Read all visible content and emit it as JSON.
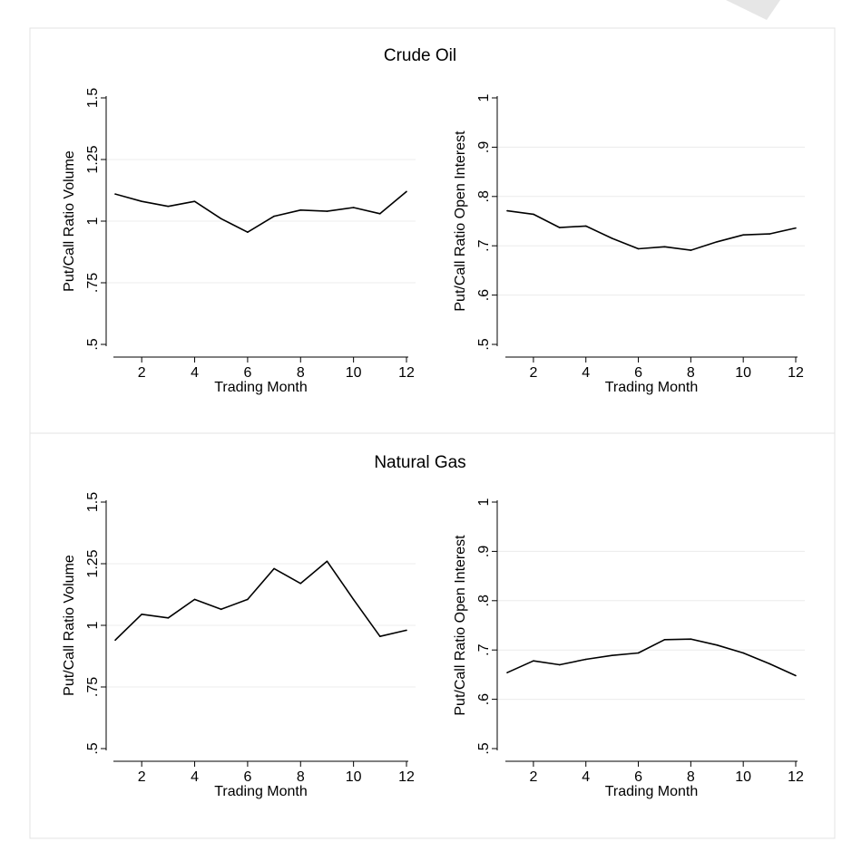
{
  "page": {
    "background": "#ffffff",
    "panel_border_color": "#e3e3e3",
    "grid_color": "#ececec",
    "line_color": "#000000"
  },
  "chart_data": [
    {
      "id": "crude-volume",
      "group_title": "Crude Oil",
      "type": "line",
      "xlabel": "Trading Month",
      "ylabel": "Put/Call Ratio Volume",
      "xlim": [
        1,
        12
      ],
      "ylim": [
        0.5,
        1.5
      ],
      "xticks": [
        2,
        4,
        6,
        8,
        10,
        12
      ],
      "xtick_labels": [
        "2",
        "4",
        "6",
        "8",
        "10",
        "12"
      ],
      "yticks": [
        0.5,
        0.75,
        1,
        1.25,
        1.5
      ],
      "ytick_labels": [
        ".5",
        ".75",
        "1",
        "1.25",
        "1.5"
      ],
      "grid": true,
      "x": [
        1,
        2,
        3,
        4,
        5,
        6,
        7,
        8,
        9,
        10,
        11,
        12
      ],
      "y": [
        1.11,
        1.08,
        1.06,
        1.08,
        1.01,
        0.955,
        1.02,
        1.045,
        1.04,
        1.055,
        1.03,
        1.12
      ]
    },
    {
      "id": "crude-oi",
      "group_title": "Crude Oil",
      "type": "line",
      "xlabel": "Trading Month",
      "ylabel": "Put/Call Ratio Open Interest",
      "xlim": [
        1,
        12
      ],
      "ylim": [
        0.5,
        1.0
      ],
      "xticks": [
        2,
        4,
        6,
        8,
        10,
        12
      ],
      "xtick_labels": [
        "2",
        "4",
        "6",
        "8",
        "10",
        "12"
      ],
      "yticks": [
        0.5,
        0.6,
        0.7,
        0.8,
        0.9,
        1.0
      ],
      "ytick_labels": [
        ".5",
        ".6",
        ".7",
        ".8",
        ".9",
        "1"
      ],
      "grid": true,
      "x": [
        1,
        2,
        3,
        4,
        5,
        6,
        7,
        8,
        9,
        10,
        11,
        12
      ],
      "y": [
        0.771,
        0.764,
        0.737,
        0.74,
        0.715,
        0.694,
        0.698,
        0.691,
        0.708,
        0.722,
        0.724,
        0.736
      ]
    },
    {
      "id": "gas-volume",
      "group_title": "Natural Gas",
      "type": "line",
      "xlabel": "Trading Month",
      "ylabel": "Put/Call Ratio Volume",
      "xlim": [
        1,
        12
      ],
      "ylim": [
        0.5,
        1.5
      ],
      "xticks": [
        2,
        4,
        6,
        8,
        10,
        12
      ],
      "xtick_labels": [
        "2",
        "4",
        "6",
        "8",
        "10",
        "12"
      ],
      "yticks": [
        0.5,
        0.75,
        1,
        1.25,
        1.5
      ],
      "ytick_labels": [
        ".5",
        ".75",
        "1",
        "1.25",
        "1.5"
      ],
      "grid": true,
      "x": [
        1,
        2,
        3,
        4,
        5,
        6,
        7,
        8,
        9,
        10,
        11,
        12
      ],
      "y": [
        0.94,
        1.045,
        1.03,
        1.105,
        1.065,
        1.105,
        1.23,
        1.17,
        1.26,
        1.105,
        0.955,
        0.98
      ]
    },
    {
      "id": "gas-oi",
      "group_title": "Natural Gas",
      "type": "line",
      "xlabel": "Trading Month",
      "ylabel": "Put/Call Ratio Open Interest",
      "xlim": [
        1,
        12
      ],
      "ylim": [
        0.5,
        1.0
      ],
      "xticks": [
        2,
        4,
        6,
        8,
        10,
        12
      ],
      "xtick_labels": [
        "2",
        "4",
        "6",
        "8",
        "10",
        "12"
      ],
      "yticks": [
        0.5,
        0.6,
        0.7,
        0.8,
        0.9,
        1.0
      ],
      "ytick_labels": [
        ".5",
        ".6",
        ".7",
        ".8",
        ".9",
        "1"
      ],
      "grid": true,
      "x": [
        1,
        2,
        3,
        4,
        5,
        6,
        7,
        8,
        9,
        10,
        11,
        12
      ],
      "y": [
        0.654,
        0.678,
        0.67,
        0.681,
        0.689,
        0.694,
        0.721,
        0.722,
        0.71,
        0.694,
        0.672,
        0.648
      ]
    }
  ],
  "groups": [
    {
      "title": "Crude Oil"
    },
    {
      "title": "Natural Gas"
    }
  ]
}
